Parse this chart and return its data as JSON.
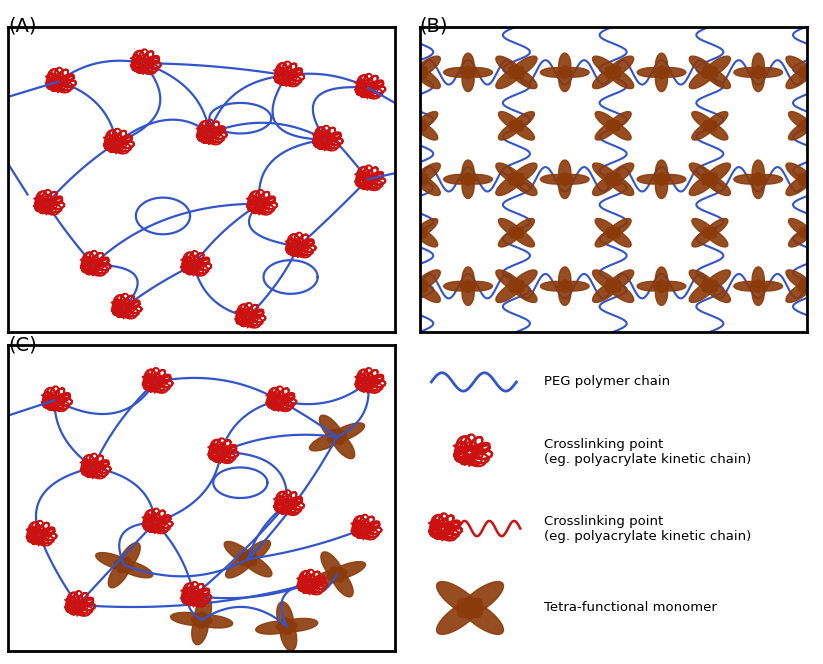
{
  "fig_width": 8.23,
  "fig_height": 6.64,
  "dpi": 100,
  "bg_color": "#ffffff",
  "blue_chain_color": "#3355cc",
  "red_crosslink_color": "#cc1111",
  "brown_monomer_color": "#8B3A0A",
  "panel_labels": [
    "(A)",
    "(B)",
    "(C)"
  ],
  "legend_texts": [
    "PEG polymer chain",
    "Crosslinking point\n(eg. polyacrylate kinetic chain)",
    "Crosslinking point\n(eg. polyacrylate kinetic chain)",
    "Tetra-functional monomer"
  ],
  "title_fontsize": 12,
  "legend_fontsize": 10
}
